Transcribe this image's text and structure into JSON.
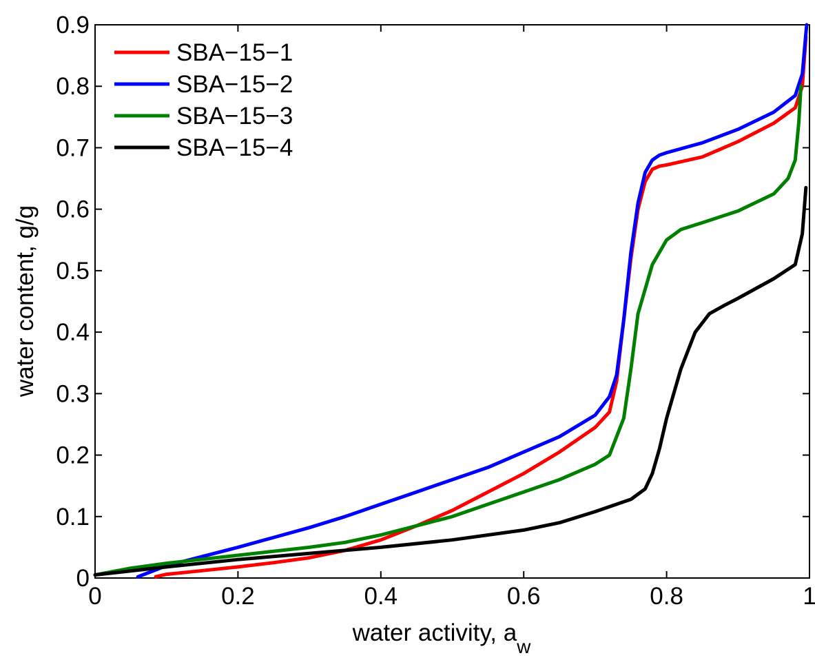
{
  "chart_data": {
    "type": "line",
    "title": "",
    "xlabel": "water activity, a",
    "xlabel_subscript": "w",
    "ylabel": "water content, g/g",
    "xlim": [
      0,
      1
    ],
    "ylim": [
      0,
      0.9
    ],
    "xticks": [
      0,
      0.2,
      0.4,
      0.6,
      0.8,
      1
    ],
    "xtick_labels": [
      "0",
      "0.2",
      "0.4",
      "0.6",
      "0.8",
      "1"
    ],
    "yticks": [
      0,
      0.1,
      0.2,
      0.3,
      0.4,
      0.5,
      0.6,
      0.7,
      0.8,
      0.9
    ],
    "ytick_labels": [
      "0",
      "0.1",
      "0.2",
      "0.3",
      "0.4",
      "0.5",
      "0.6",
      "0.7",
      "0.8",
      "0.9"
    ],
    "grid": false,
    "legend_position": "top-left",
    "series": [
      {
        "name": "SBA−15−1",
        "color": "#ff0000",
        "x": [
          0.085,
          0.1,
          0.15,
          0.2,
          0.25,
          0.3,
          0.35,
          0.4,
          0.45,
          0.5,
          0.55,
          0.6,
          0.65,
          0.7,
          0.72,
          0.73,
          0.74,
          0.75,
          0.76,
          0.77,
          0.78,
          0.79,
          0.8,
          0.85,
          0.9,
          0.95,
          0.98,
          0.99,
          0.995
        ],
        "y": [
          0.002,
          0.006,
          0.012,
          0.018,
          0.025,
          0.033,
          0.045,
          0.062,
          0.085,
          0.11,
          0.14,
          0.17,
          0.205,
          0.245,
          0.27,
          0.32,
          0.42,
          0.52,
          0.6,
          0.645,
          0.665,
          0.67,
          0.672,
          0.685,
          0.71,
          0.74,
          0.765,
          0.8,
          0.88
        ]
      },
      {
        "name": "SBA−15−2",
        "color": "#0000ff",
        "x": [
          0.06,
          0.1,
          0.15,
          0.2,
          0.25,
          0.3,
          0.35,
          0.4,
          0.45,
          0.5,
          0.55,
          0.6,
          0.65,
          0.7,
          0.72,
          0.73,
          0.74,
          0.75,
          0.76,
          0.77,
          0.78,
          0.79,
          0.8,
          0.85,
          0.9,
          0.95,
          0.98,
          0.99,
          0.996
        ],
        "y": [
          0.002,
          0.02,
          0.035,
          0.05,
          0.066,
          0.082,
          0.1,
          0.12,
          0.14,
          0.16,
          0.18,
          0.205,
          0.23,
          0.265,
          0.295,
          0.33,
          0.42,
          0.53,
          0.61,
          0.66,
          0.68,
          0.688,
          0.692,
          0.708,
          0.73,
          0.758,
          0.785,
          0.82,
          0.9
        ]
      },
      {
        "name": "SBA−15−3",
        "color": "#008000",
        "x": [
          0.0,
          0.05,
          0.1,
          0.2,
          0.3,
          0.35,
          0.4,
          0.45,
          0.5,
          0.55,
          0.6,
          0.65,
          0.7,
          0.72,
          0.74,
          0.75,
          0.76,
          0.78,
          0.8,
          0.82,
          0.85,
          0.9,
          0.95,
          0.97,
          0.98,
          0.985,
          0.988
        ],
        "y": [
          0.005,
          0.016,
          0.024,
          0.037,
          0.05,
          0.058,
          0.07,
          0.085,
          0.1,
          0.12,
          0.14,
          0.16,
          0.185,
          0.2,
          0.26,
          0.34,
          0.43,
          0.51,
          0.55,
          0.567,
          0.578,
          0.597,
          0.625,
          0.65,
          0.68,
          0.74,
          0.8
        ]
      },
      {
        "name": "SBA−15−4",
        "color": "#000000",
        "x": [
          0.0,
          0.1,
          0.2,
          0.3,
          0.4,
          0.5,
          0.6,
          0.65,
          0.7,
          0.75,
          0.77,
          0.78,
          0.79,
          0.8,
          0.82,
          0.84,
          0.86,
          0.88,
          0.9,
          0.95,
          0.98,
          0.99,
          0.995
        ],
        "y": [
          0.005,
          0.018,
          0.03,
          0.04,
          0.05,
          0.062,
          0.078,
          0.09,
          0.108,
          0.128,
          0.145,
          0.17,
          0.21,
          0.26,
          0.34,
          0.4,
          0.43,
          0.443,
          0.455,
          0.487,
          0.51,
          0.56,
          0.635
        ]
      }
    ]
  }
}
